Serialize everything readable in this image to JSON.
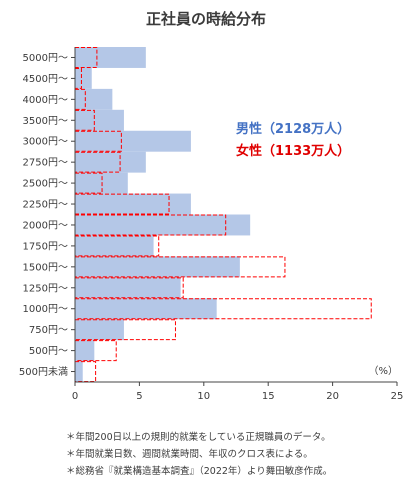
{
  "chart_data": {
    "type": "bar",
    "orientation": "horizontal",
    "title": "正社員の時給分布",
    "categories": [
      "5000円〜",
      "4500円〜",
      "4000円〜",
      "3500円〜",
      "3000円〜",
      "2750円〜",
      "2500円〜",
      "2250円〜",
      "2000円〜",
      "1750円〜",
      "1500円〜",
      "1250円〜",
      "1000円〜",
      "750円〜",
      "500円〜",
      "500円未満"
    ],
    "series": [
      {
        "name": "男性（2128万人）",
        "color": "#b4c7e7",
        "style": "filled",
        "values": [
          5.5,
          1.3,
          2.9,
          3.8,
          9.0,
          5.5,
          4.1,
          9.0,
          13.6,
          6.1,
          12.8,
          8.2,
          11.0,
          3.8,
          1.5,
          0.6
        ]
      },
      {
        "name": "女性（1133万人）",
        "color": "#ff0000",
        "style": "dashed",
        "values": [
          1.7,
          0.5,
          0.8,
          1.5,
          3.6,
          3.5,
          2.1,
          7.3,
          11.7,
          6.5,
          16.3,
          8.4,
          23.0,
          7.8,
          3.2,
          1.6
        ]
      }
    ],
    "xlim": [
      0,
      25
    ],
    "xticks": [
      0,
      5,
      10,
      15,
      20,
      25
    ],
    "x_unit": "（%）",
    "grid": false,
    "legend_position": "right-top"
  },
  "notes": [
    "＊年間200日以上の規則的就業をしている正規職員のデータ。",
    "＊年間就業日数、週間就業時間、年収のクロス表による。",
    "＊総務省『就業構造基本調査』（2022年）より舞田敏彦作成。"
  ]
}
